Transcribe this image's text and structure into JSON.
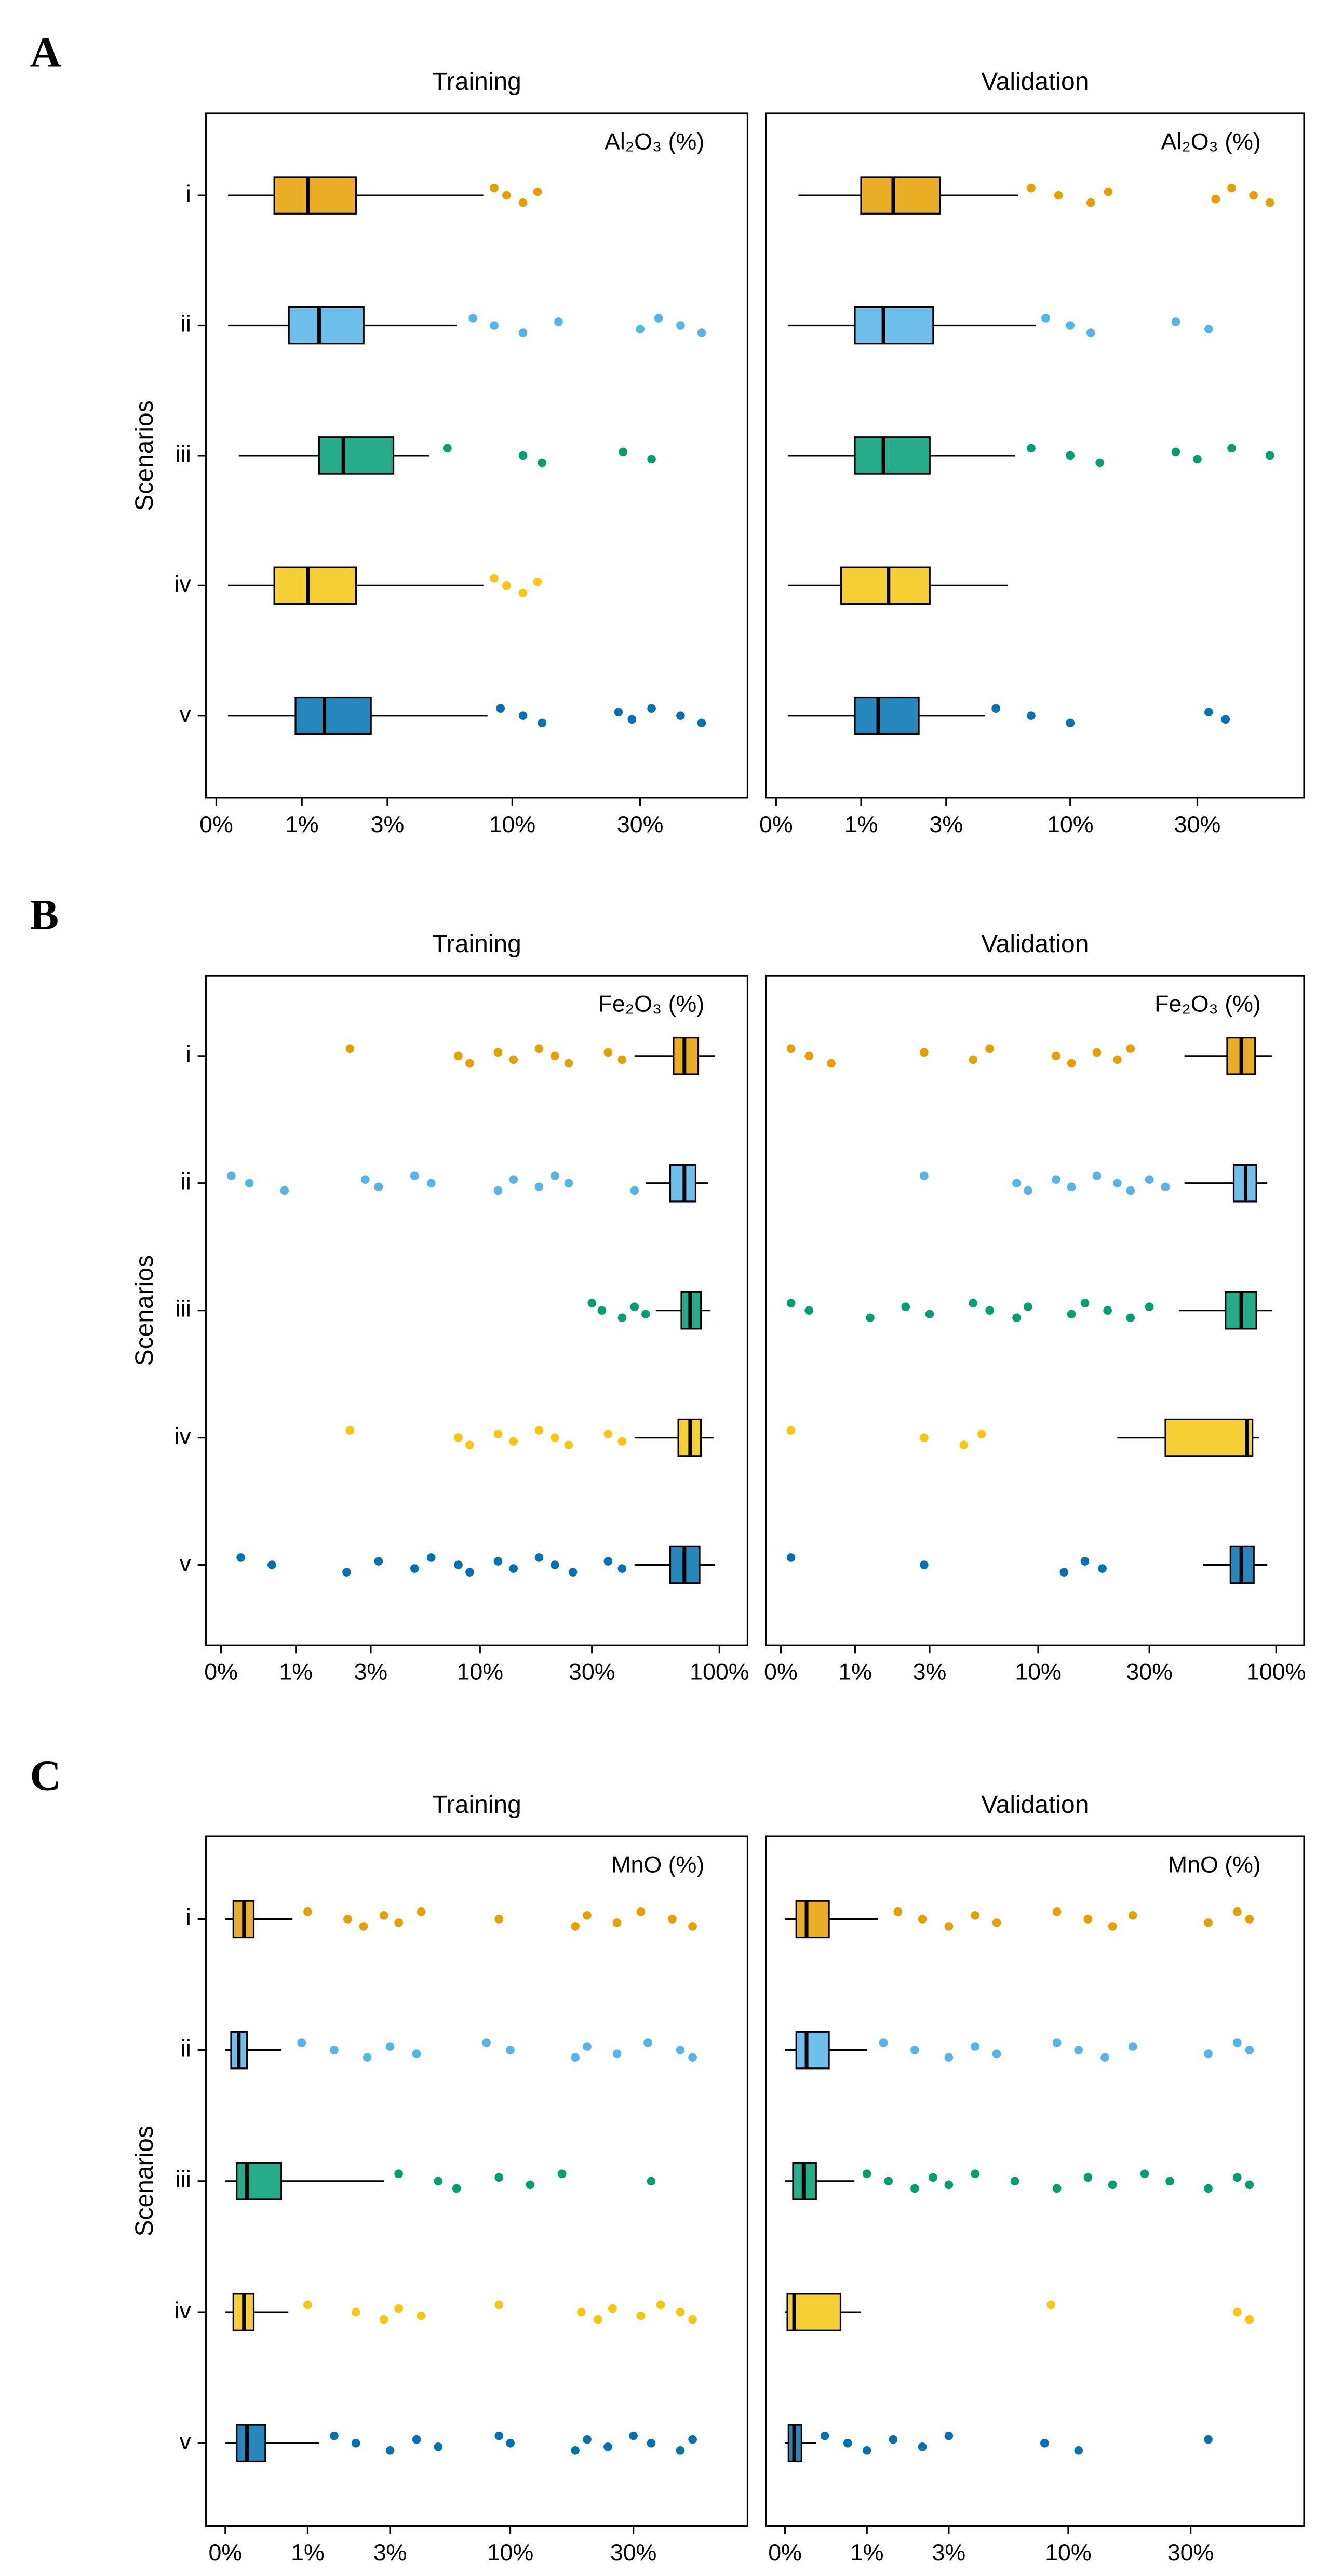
{
  "chart_data": [
    {
      "type": "box",
      "panel_label": "A",
      "title": "Training",
      "annotation": "Al₂O₃ (%)",
      "ylabel": "Scenarios",
      "xscale": "log1p",
      "categories": [
        "i",
        "ii",
        "iii",
        "iv",
        "v"
      ],
      "xlim": [
        -0.08,
        73
      ],
      "xticks": [
        {
          "value": 0,
          "label": "0%"
        },
        {
          "value": 1,
          "label": "1%"
        },
        {
          "value": 3,
          "label": "3%"
        },
        {
          "value": 10,
          "label": "10%"
        },
        {
          "value": 30,
          "label": "30%"
        }
      ],
      "boxes": [
        {
          "color": "#E69F00",
          "whislo": 0.1,
          "q1": 0.6,
          "med": 1.1,
          "q3": 2.1,
          "whishi": 7.7,
          "fliers": [
            8.5,
            9.5,
            11,
            12.5
          ]
        },
        {
          "color": "#56B4E9",
          "whislo": 0.1,
          "q1": 0.8,
          "med": 1.3,
          "q3": 2.3,
          "whishi": 6,
          "fliers": [
            7,
            8.5,
            11,
            15,
            30,
            35,
            42,
            50
          ]
        },
        {
          "color": "#009E73",
          "whislo": 0.2,
          "q1": 1.3,
          "med": 1.8,
          "q3": 3.2,
          "whishi": 4.6,
          "fliers": [
            5.5,
            11,
            13,
            26,
            33
          ]
        },
        {
          "color": "#F5C710",
          "whislo": 0.1,
          "q1": 0.6,
          "med": 1.1,
          "q3": 2.1,
          "whishi": 7.7,
          "fliers": [
            8.5,
            9.5,
            11,
            12.5
          ]
        },
        {
          "color": "#0072B2",
          "whislo": 0.1,
          "q1": 0.9,
          "med": 1.4,
          "q3": 2.5,
          "whishi": 8,
          "fliers": [
            9,
            11,
            13,
            25,
            28,
            33,
            42,
            50
          ]
        }
      ]
    },
    {
      "type": "box",
      "title": "Validation",
      "annotation": "Al₂O₃ (%)",
      "xscale": "log1p",
      "xlim": [
        -0.08,
        73
      ],
      "xticks": [
        {
          "value": 0,
          "label": "0%"
        },
        {
          "value": 1,
          "label": "1%"
        },
        {
          "value": 3,
          "label": "3%"
        },
        {
          "value": 10,
          "label": "10%"
        },
        {
          "value": 30,
          "label": "30%"
        }
      ],
      "boxes": [
        {
          "color": "#E69F00",
          "whislo": 0.2,
          "q1": 1.0,
          "med": 1.6,
          "q3": 2.8,
          "whishi": 6.2,
          "fliers": [
            7,
            9,
            12,
            14,
            35,
            40,
            48,
            55
          ]
        },
        {
          "color": "#56B4E9",
          "whislo": 0.1,
          "q1": 0.9,
          "med": 1.4,
          "q3": 2.6,
          "whishi": 7.3,
          "fliers": [
            8,
            10,
            12,
            25,
            33
          ]
        },
        {
          "color": "#009E73",
          "whislo": 0.1,
          "q1": 0.9,
          "med": 1.4,
          "q3": 2.5,
          "whishi": 6,
          "fliers": [
            7,
            10,
            13,
            25,
            30,
            40,
            55
          ]
        },
        {
          "color": "#F5C710",
          "whislo": 0.1,
          "q1": 0.7,
          "med": 1.5,
          "q3": 2.5,
          "whishi": 5.6,
          "fliers": []
        },
        {
          "color": "#0072B2",
          "whislo": 0.1,
          "q1": 0.9,
          "med": 1.3,
          "q3": 2.2,
          "whishi": 4.5,
          "fliers": [
            5,
            7,
            10,
            33,
            38
          ]
        }
      ]
    },
    {
      "type": "box",
      "panel_label": "B",
      "title": "Training",
      "annotation": "Fe₂O₃ (%)",
      "ylabel": "Scenarios",
      "xscale": "log1p",
      "categories": [
        "i",
        "ii",
        "iii",
        "iv",
        "v"
      ],
      "xlim": [
        -0.13,
        130
      ],
      "xticks": [
        {
          "value": 0,
          "label": "0%"
        },
        {
          "value": 1,
          "label": "1%"
        },
        {
          "value": 3,
          "label": "3%"
        },
        {
          "value": 10,
          "label": "10%"
        },
        {
          "value": 30,
          "label": "30%"
        },
        {
          "value": 100,
          "label": "100%"
        }
      ],
      "boxes": [
        {
          "color": "#E69F00",
          "whislo": 45,
          "q1": 65,
          "med": 72,
          "q3": 82,
          "whishi": 96,
          "fliers": [
            2.3,
            8,
            9,
            12,
            14,
            18,
            21,
            24,
            35,
            40
          ]
        },
        {
          "color": "#56B4E9",
          "whislo": 50,
          "q1": 63,
          "med": 72,
          "q3": 80,
          "whishi": 90,
          "fliers": [
            0.1,
            0.3,
            0.8,
            2.8,
            3.3,
            5,
            6,
            12,
            14,
            18,
            21,
            24,
            45
          ]
        },
        {
          "color": "#009E73",
          "whislo": 55,
          "q1": 70,
          "med": 76,
          "q3": 84,
          "whishi": 92,
          "fliers": [
            30,
            33,
            40,
            45,
            50
          ]
        },
        {
          "color": "#F5C710",
          "whislo": 45,
          "q1": 68,
          "med": 76,
          "q3": 84,
          "whishi": 95,
          "fliers": [
            2.3,
            8,
            9,
            12,
            14,
            18,
            21,
            24,
            35,
            40
          ]
        },
        {
          "color": "#0072B2",
          "whislo": 45,
          "q1": 63,
          "med": 72,
          "q3": 83,
          "whishi": 96,
          "fliers": [
            0.2,
            0.6,
            2.2,
            3.3,
            5,
            6,
            8,
            9,
            12,
            14,
            18,
            21,
            25,
            35,
            40
          ]
        }
      ]
    },
    {
      "type": "box",
      "title": "Validation",
      "annotation": "Fe₂O₃ (%)",
      "xscale": "log1p",
      "xlim": [
        -0.13,
        130
      ],
      "xticks": [
        {
          "value": 0,
          "label": "0%"
        },
        {
          "value": 1,
          "label": "1%"
        },
        {
          "value": 3,
          "label": "3%"
        },
        {
          "value": 10,
          "label": "10%"
        },
        {
          "value": 30,
          "label": "30%"
        },
        {
          "value": 100,
          "label": "100%"
        }
      ],
      "boxes": [
        {
          "color": "#E69F00",
          "whislo": 42,
          "q1": 63,
          "med": 72,
          "q3": 82,
          "whishi": 96,
          "fliers": [
            0.1,
            0.3,
            0.6,
            2.8,
            5,
            6,
            12,
            14,
            18,
            22,
            25
          ]
        },
        {
          "color": "#56B4E9",
          "whislo": 42,
          "q1": 67,
          "med": 75,
          "q3": 83,
          "whishi": 92,
          "fliers": [
            2.8,
            8,
            9,
            12,
            14,
            18,
            22,
            25,
            30,
            35
          ]
        },
        {
          "color": "#009E73",
          "whislo": 40,
          "q1": 62,
          "med": 72,
          "q3": 83,
          "whishi": 96,
          "fliers": [
            0.1,
            0.3,
            1.3,
            2.2,
            3,
            5,
            6,
            8,
            9,
            14,
            16,
            20,
            25,
            30
          ]
        },
        {
          "color": "#F5C710",
          "whislo": 22,
          "q1": 35,
          "med": 76,
          "q3": 80,
          "whishi": 85,
          "fliers": [
            0.1,
            2.8,
            4.5,
            5.5
          ]
        },
        {
          "color": "#0072B2",
          "whislo": 50,
          "q1": 65,
          "med": 72,
          "q3": 81,
          "whishi": 92,
          "fliers": [
            0.1,
            2.8,
            13,
            16,
            19
          ]
        }
      ]
    },
    {
      "type": "box",
      "panel_label": "C",
      "title": "Training",
      "annotation": "MnO (%)",
      "ylabel": "Scenarios",
      "xscale": "log1p",
      "categories": [
        "i",
        "ii",
        "iii",
        "iv",
        "v"
      ],
      "xlim": [
        -0.15,
        80
      ],
      "xticks": [
        {
          "value": 0,
          "label": "0%"
        },
        {
          "value": 1,
          "label": "1%"
        },
        {
          "value": 3,
          "label": "3%"
        },
        {
          "value": 10,
          "label": "10%"
        },
        {
          "value": 30,
          "label": "30%"
        }
      ],
      "boxes": [
        {
          "color": "#E69F00",
          "whislo": 0,
          "q1": 0.07,
          "med": 0.17,
          "q3": 0.27,
          "whishi": 0.76,
          "fliers": [
            1,
            1.8,
            2.2,
            2.8,
            3.3,
            4.2,
            9,
            18,
            20,
            26,
            32,
            42,
            50
          ]
        },
        {
          "color": "#56B4E9",
          "whislo": 0,
          "q1": 0.05,
          "med": 0.12,
          "q3": 0.2,
          "whishi": 0.6,
          "fliers": [
            0.9,
            1.5,
            2.3,
            3,
            4,
            8,
            10,
            18,
            20,
            26,
            34,
            45,
            50
          ]
        },
        {
          "color": "#009E73",
          "whislo": 0,
          "q1": 0.1,
          "med": 0.2,
          "q3": 0.6,
          "whishi": 2.8,
          "fliers": [
            3.3,
            5,
            6,
            9,
            12,
            16,
            35
          ]
        },
        {
          "color": "#F5C710",
          "whislo": 0,
          "q1": 0.07,
          "med": 0.17,
          "q3": 0.27,
          "whishi": 0.7,
          "fliers": [
            1,
            2,
            2.8,
            3.3,
            4.2,
            9,
            19,
            22,
            25,
            32,
            38,
            45,
            50
          ]
        },
        {
          "color": "#0072B2",
          "whislo": 0,
          "q1": 0.1,
          "med": 0.2,
          "q3": 0.4,
          "whishi": 1.2,
          "fliers": [
            1.5,
            2,
            3,
            4,
            5,
            9,
            10,
            18,
            20,
            24,
            30,
            35,
            45,
            50
          ]
        }
      ]
    },
    {
      "type": "box",
      "title": "Validation",
      "annotation": "MnO (%)",
      "xscale": "log1p",
      "xlim": [
        -0.15,
        80
      ],
      "xticks": [
        {
          "value": 0,
          "label": "0%"
        },
        {
          "value": 1,
          "label": "1%"
        },
        {
          "value": 3,
          "label": "3%"
        },
        {
          "value": 10,
          "label": "10%"
        },
        {
          "value": 30,
          "label": "30%"
        }
      ],
      "boxes": [
        {
          "color": "#E69F00",
          "whislo": 0,
          "q1": 0.1,
          "med": 0.2,
          "q3": 0.45,
          "whishi": 1.2,
          "fliers": [
            1.6,
            2.2,
            3,
            4,
            5,
            9,
            12,
            15,
            18,
            35,
            45,
            50
          ]
        },
        {
          "color": "#56B4E9",
          "whislo": 0,
          "q1": 0.1,
          "med": 0.2,
          "q3": 0.45,
          "whishi": 1.0,
          "fliers": [
            1.3,
            2,
            3,
            4,
            5,
            9,
            11,
            14,
            18,
            35,
            45,
            50
          ]
        },
        {
          "color": "#009E73",
          "whislo": 0,
          "q1": 0.07,
          "med": 0.17,
          "q3": 0.3,
          "whishi": 0.8,
          "fliers": [
            1,
            1.4,
            2,
            2.5,
            3,
            4,
            6,
            9,
            12,
            15,
            20,
            25,
            35,
            45,
            50
          ]
        },
        {
          "color": "#F5C710",
          "whislo": 0,
          "q1": 0.02,
          "med": 0.08,
          "q3": 0.6,
          "whishi": 0.9,
          "fliers": [
            8.5,
            45,
            50
          ]
        },
        {
          "color": "#0072B2",
          "whislo": 0,
          "q1": 0.03,
          "med": 0.08,
          "q3": 0.15,
          "whishi": 0.3,
          "fliers": [
            0.4,
            0.7,
            1,
            1.5,
            2.2,
            3,
            8,
            11,
            35
          ]
        }
      ]
    }
  ]
}
